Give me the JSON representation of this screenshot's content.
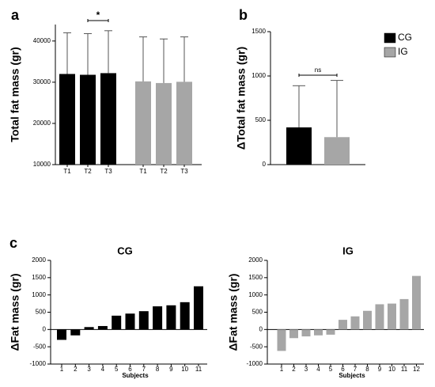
{
  "chart_data": [
    {
      "type": "bar",
      "panel_label": "a",
      "ylabel": "Total fat mass (gr)",
      "categories": [
        "T1",
        "T2",
        "T3"
      ],
      "series": [
        {
          "color": "#000000",
          "values": [
            32000,
            31800,
            32200
          ],
          "errors": [
            10000,
            10000,
            10300
          ]
        },
        {
          "color": "#a6a6a6",
          "values": [
            30200,
            29800,
            30100
          ],
          "errors": [
            10800,
            10700,
            10900
          ]
        }
      ],
      "annotation": "*",
      "ylim": [
        10000,
        44000
      ],
      "yticks": [
        10000,
        20000,
        30000,
        40000
      ]
    },
    {
      "type": "bar",
      "panel_label": "b",
      "ylabel": "ΔTotal fat mass (gr)",
      "series": [
        {
          "name": "CG",
          "color": "#000000",
          "values": [
            420
          ],
          "errors": [
            470
          ]
        },
        {
          "name": "IG",
          "color": "#a6a6a6",
          "values": [
            310
          ],
          "errors": [
            640
          ]
        }
      ],
      "annotation": "ns",
      "ylim": [
        0,
        1500
      ],
      "yticks": [
        0,
        500,
        1000,
        1500
      ],
      "legend": "top-right"
    },
    {
      "type": "bar",
      "panel_label": "c",
      "title": "CG",
      "ylabel": "ΔFat mass (gr)",
      "xlabel": "Subjects",
      "categories": [
        "1",
        "2",
        "3",
        "4",
        "5",
        "6",
        "7",
        "8",
        "9",
        "10",
        "11"
      ],
      "color": "#000000",
      "values": [
        -300,
        -170,
        70,
        100,
        400,
        460,
        530,
        670,
        700,
        790,
        1250
      ],
      "ylim": [
        -1000,
        2000
      ],
      "yticks": [
        -1000,
        -500,
        0,
        500,
        1000,
        1500,
        2000
      ]
    },
    {
      "type": "bar",
      "title": "IG",
      "ylabel": "ΔFat mass (gr)",
      "xlabel": "Subjects",
      "categories": [
        "1",
        "2",
        "3",
        "4",
        "5",
        "6",
        "7",
        "8",
        "9",
        "10",
        "11",
        "12"
      ],
      "color": "#a6a6a6",
      "values": [
        -620,
        -250,
        -200,
        -170,
        -150,
        280,
        380,
        540,
        730,
        750,
        880,
        1550
      ],
      "ylim": [
        -1000,
        2000
      ],
      "yticks": [
        -1000,
        -500,
        0,
        500,
        1000,
        1500,
        2000
      ]
    }
  ]
}
